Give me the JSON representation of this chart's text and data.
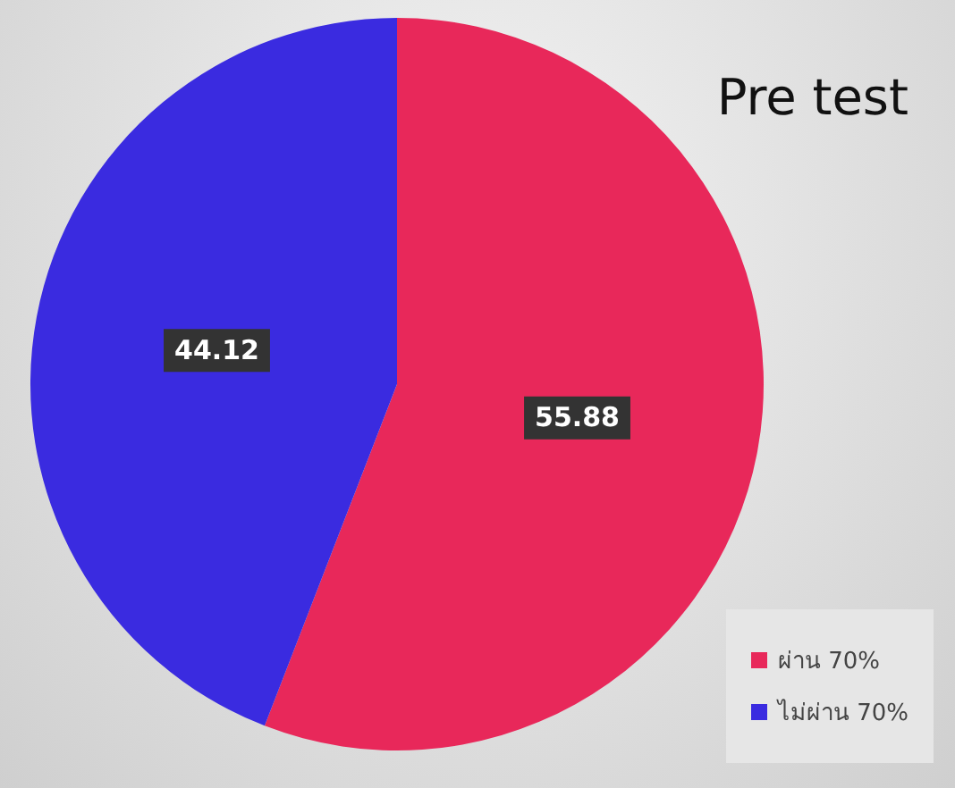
{
  "chart_data": {
    "type": "pie",
    "title": "Pre test",
    "categories": [
      "ผ่าน 70%",
      "ไม่ผ่าน 70%"
    ],
    "values": [
      55.88,
      44.12
    ],
    "colors": [
      "#e8285a",
      "#3a2be0"
    ],
    "data_labels": true,
    "legend": "bottom right"
  }
}
